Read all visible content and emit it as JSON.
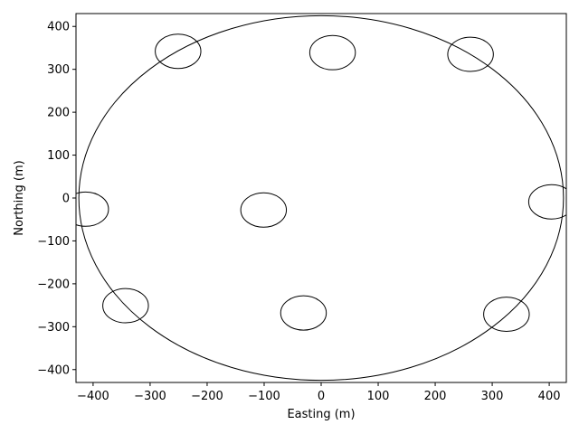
{
  "chart_data": {
    "type": "scatter",
    "title": "",
    "xlabel": "Easting (m)",
    "ylabel": "Northing (m)",
    "xlim": [
      -430,
      430
    ],
    "ylim": [
      -430,
      430
    ],
    "xticks": [
      -400,
      -300,
      -200,
      -100,
      0,
      100,
      200,
      300,
      400
    ],
    "yticks": [
      -400,
      -300,
      -200,
      -100,
      0,
      100,
      200,
      300,
      400
    ],
    "grid": false,
    "boundary": {
      "cx": 0,
      "cy": 0,
      "r": 425
    },
    "circle_radius_m": 40,
    "series": [
      {
        "x": [
          -413,
          -251,
          20,
          262,
          404,
          -101,
          -343,
          -31,
          325
        ],
        "y": [
          -26,
          342,
          339,
          335,
          -9,
          -28,
          -251,
          -268,
          -271
        ]
      }
    ]
  }
}
